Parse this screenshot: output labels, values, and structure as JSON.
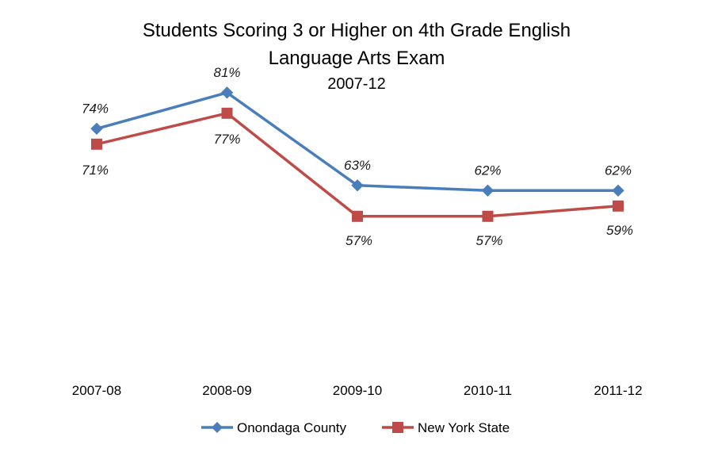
{
  "chart_data": {
    "type": "line",
    "title": [
      "Students Scoring 3 or Higher on 4th Grade English",
      "Language Arts Exam"
    ],
    "subtitle": "2007-12",
    "categories": [
      "2007-08",
      "2008-09",
      "2009-10",
      "2010-11",
      "2011-12"
    ],
    "series": [
      {
        "name": "Onondaga County",
        "values": [
          74,
          81,
          63,
          62,
          62
        ],
        "labels": [
          "74%",
          "81%",
          "63%",
          "62%",
          "62%"
        ],
        "color": "#4a7ebb",
        "marker": "diamond"
      },
      {
        "name": "New York State",
        "values": [
          71,
          77,
          57,
          57,
          59
        ],
        "labels": [
          "71%",
          "77%",
          "57%",
          "57%",
          "59%"
        ],
        "color": "#be4b48",
        "marker": "square"
      }
    ],
    "grid": false,
    "legend_position": "bottom",
    "xlabel": "",
    "ylabel": ""
  }
}
